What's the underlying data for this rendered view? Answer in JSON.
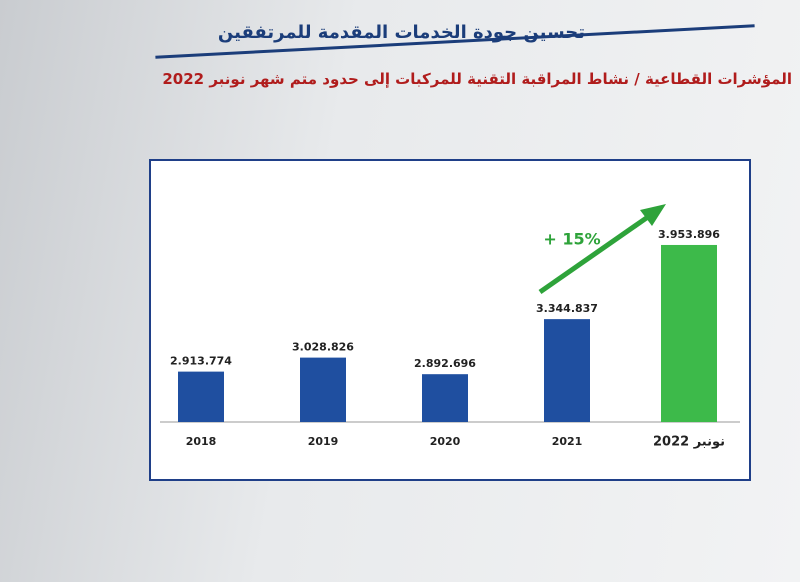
{
  "chart_data": {
    "type": "bar",
    "title": "تحسين جودة الخدمات المقدمة للمرتفقين",
    "subtitle": "المؤشرات القطاعية / نشاط المراقبة التقنية للمركبات إلى حدود متم شهر نونبر 2022",
    "annotation": "+ 15%",
    "categories": [
      "2018",
      "2019",
      "2020",
      "2021",
      "نونبر 2022"
    ],
    "values": [
      2913774,
      3028826,
      2892696,
      3344837,
      3953896
    ],
    "value_labels": [
      "2.913.774",
      "3.028.826",
      "2.892.696",
      "3.344.837",
      "3.953.896"
    ],
    "colors": [
      "#1f4fa0",
      "#1f4fa0",
      "#1f4fa0",
      "#1f4fa0",
      "#3dba4a"
    ],
    "ylim": [
      2500000,
      4200000
    ]
  }
}
